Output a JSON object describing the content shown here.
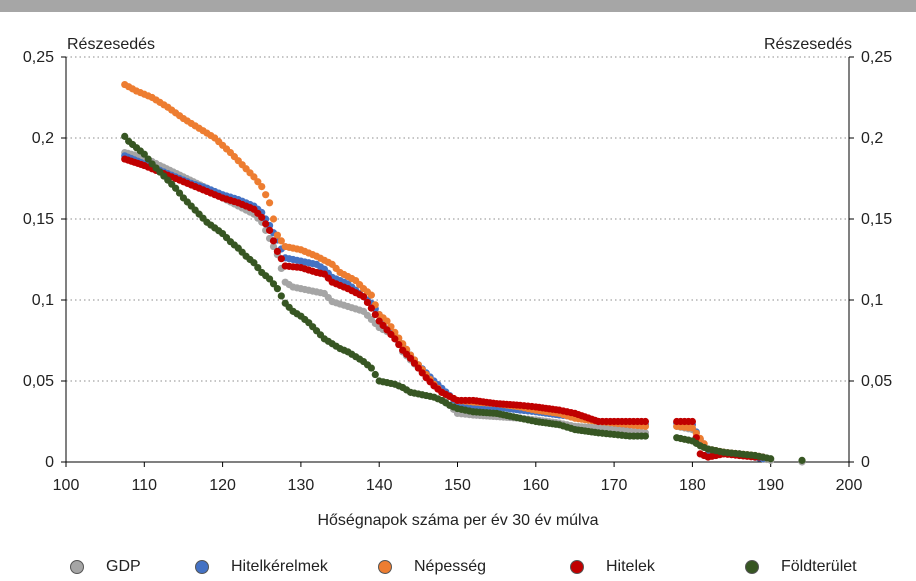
{
  "chart_data": {
    "type": "scatter",
    "title": "",
    "xlabel": "Hőségnapok száma per év 30 év múlva",
    "ylabel_left": "Részesedés",
    "ylabel_right": "Részesedés",
    "xlim": [
      100,
      200
    ],
    "ylim": [
      0,
      0.25
    ],
    "x_ticks": [
      "100",
      "110",
      "120",
      "130",
      "140",
      "150",
      "160",
      "170",
      "180",
      "190",
      "200"
    ],
    "y_ticks": [
      "0",
      "0,05",
      "0,1",
      "0,15",
      "0,2",
      "0,25"
    ],
    "grid": "horizontal-dotted",
    "legend_position": "bottom",
    "series": [
      {
        "name": "GDP",
        "color": "#a5a5a5",
        "points": [
          [
            107.5,
            0.191
          ],
          [
            110,
            0.188
          ],
          [
            112,
            0.183
          ],
          [
            115,
            0.176
          ],
          [
            118,
            0.169
          ],
          [
            120,
            0.163
          ],
          [
            122,
            0.158
          ],
          [
            124,
            0.153
          ],
          [
            125,
            0.148
          ],
          [
            126,
            0.138
          ],
          [
            127,
            0.128
          ],
          [
            128,
            0.111
          ],
          [
            129,
            0.108
          ],
          [
            131,
            0.106
          ],
          [
            133,
            0.104
          ],
          [
            134,
            0.099
          ],
          [
            136,
            0.096
          ],
          [
            138,
            0.093
          ],
          [
            139,
            0.088
          ],
          [
            140,
            0.083
          ],
          [
            142,
            0.078
          ],
          [
            143,
            0.068
          ],
          [
            144,
            0.063
          ],
          [
            146,
            0.053
          ],
          [
            148,
            0.043
          ],
          [
            149,
            0.035
          ],
          [
            150,
            0.03
          ],
          [
            152,
            0.029
          ],
          [
            155,
            0.028
          ],
          [
            158,
            0.027
          ],
          [
            160,
            0.026
          ],
          [
            163,
            0.024
          ],
          [
            165,
            0.022
          ],
          [
            168,
            0.021
          ],
          [
            170,
            0.02
          ],
          [
            172,
            0.019
          ],
          [
            174,
            0.018
          ],
          [
            178,
            0.022
          ],
          [
            180,
            0.02
          ],
          [
            181,
            0.011
          ],
          [
            182,
            0.008
          ],
          [
            184,
            0.006
          ],
          [
            186,
            0.005
          ],
          [
            188,
            0.003
          ],
          [
            189,
            0.002
          ],
          [
            190,
            0.001
          ],
          [
            194,
            0.0
          ]
        ]
      },
      {
        "name": "Hitelkérelmek",
        "color": "#4472c4",
        "points": [
          [
            107.5,
            0.189
          ],
          [
            110,
            0.184
          ],
          [
            112,
            0.18
          ],
          [
            114,
            0.176
          ],
          [
            116,
            0.172
          ],
          [
            118,
            0.169
          ],
          [
            120,
            0.165
          ],
          [
            122,
            0.162
          ],
          [
            124,
            0.158
          ],
          [
            125,
            0.154
          ],
          [
            126,
            0.146
          ],
          [
            127,
            0.137
          ],
          [
            128,
            0.126
          ],
          [
            130,
            0.124
          ],
          [
            132,
            0.122
          ],
          [
            133,
            0.119
          ],
          [
            134,
            0.114
          ],
          [
            136,
            0.11
          ],
          [
            137,
            0.106
          ],
          [
            139,
            0.098
          ],
          [
            140,
            0.091
          ],
          [
            141,
            0.082
          ],
          [
            143,
            0.072
          ],
          [
            145,
            0.06
          ],
          [
            147,
            0.05
          ],
          [
            149,
            0.041
          ],
          [
            150,
            0.036
          ],
          [
            152,
            0.035
          ],
          [
            155,
            0.034
          ],
          [
            158,
            0.032
          ],
          [
            160,
            0.031
          ],
          [
            163,
            0.029
          ],
          [
            165,
            0.028
          ],
          [
            168,
            0.025
          ],
          [
            170,
            0.024
          ],
          [
            172,
            0.023
          ],
          [
            174,
            0.023
          ],
          [
            178,
            0.024
          ],
          [
            180,
            0.023
          ],
          [
            182,
            0.005
          ],
          [
            186,
            0.005
          ],
          [
            188,
            0.003
          ],
          [
            189,
            0.002
          ]
        ]
      },
      {
        "name": "Népesség",
        "color": "#ed7d31",
        "points": [
          [
            107.5,
            0.233
          ],
          [
            109,
            0.229
          ],
          [
            111,
            0.225
          ],
          [
            113,
            0.219
          ],
          [
            115,
            0.212
          ],
          [
            117,
            0.206
          ],
          [
            119,
            0.2
          ],
          [
            121,
            0.191
          ],
          [
            122,
            0.186
          ],
          [
            123,
            0.181
          ],
          [
            124,
            0.176
          ],
          [
            125,
            0.17
          ],
          [
            126,
            0.16
          ],
          [
            127,
            0.14
          ],
          [
            128,
            0.133
          ],
          [
            130,
            0.131
          ],
          [
            132,
            0.127
          ],
          [
            134,
            0.122
          ],
          [
            135,
            0.117
          ],
          [
            137,
            0.112
          ],
          [
            138,
            0.107
          ],
          [
            139,
            0.103
          ],
          [
            140,
            0.091
          ],
          [
            141,
            0.087
          ],
          [
            142,
            0.08
          ],
          [
            143,
            0.073
          ],
          [
            144,
            0.066
          ],
          [
            145,
            0.06
          ],
          [
            146,
            0.054
          ],
          [
            147,
            0.048
          ],
          [
            148,
            0.043
          ],
          [
            150,
            0.038
          ],
          [
            152,
            0.037
          ],
          [
            155,
            0.036
          ],
          [
            158,
            0.034
          ],
          [
            160,
            0.032
          ],
          [
            163,
            0.03
          ],
          [
            165,
            0.027
          ],
          [
            168,
            0.025
          ],
          [
            170,
            0.024
          ],
          [
            172,
            0.023
          ],
          [
            174,
            0.022
          ],
          [
            178,
            0.022
          ],
          [
            180,
            0.021
          ],
          [
            182,
            0.008
          ],
          [
            184,
            0.006
          ],
          [
            186,
            0.005
          ],
          [
            188,
            0.004
          ],
          [
            189,
            0.003
          ]
        ]
      },
      {
        "name": "Hitelek",
        "color": "#c00000",
        "points": [
          [
            107.5,
            0.187
          ],
          [
            110,
            0.183
          ],
          [
            112,
            0.179
          ],
          [
            114,
            0.175
          ],
          [
            116,
            0.171
          ],
          [
            118,
            0.167
          ],
          [
            120,
            0.163
          ],
          [
            122,
            0.16
          ],
          [
            124,
            0.156
          ],
          [
            125,
            0.151
          ],
          [
            126,
            0.143
          ],
          [
            127,
            0.13
          ],
          [
            128,
            0.121
          ],
          [
            130,
            0.12
          ],
          [
            132,
            0.117
          ],
          [
            133,
            0.116
          ],
          [
            134,
            0.111
          ],
          [
            136,
            0.107
          ],
          [
            138,
            0.102
          ],
          [
            139,
            0.095
          ],
          [
            140,
            0.087
          ],
          [
            142,
            0.076
          ],
          [
            143,
            0.069
          ],
          [
            144,
            0.064
          ],
          [
            145,
            0.058
          ],
          [
            146,
            0.052
          ],
          [
            147,
            0.047
          ],
          [
            148,
            0.043
          ],
          [
            150,
            0.038
          ],
          [
            152,
            0.038
          ],
          [
            155,
            0.036
          ],
          [
            158,
            0.035
          ],
          [
            160,
            0.034
          ],
          [
            163,
            0.032
          ],
          [
            165,
            0.03
          ],
          [
            168,
            0.025
          ],
          [
            170,
            0.025
          ],
          [
            172,
            0.025
          ],
          [
            174,
            0.025
          ],
          [
            178,
            0.025
          ],
          [
            180,
            0.025
          ],
          [
            181,
            0.005
          ],
          [
            182,
            0.003
          ],
          [
            184,
            0.005
          ],
          [
            186,
            0.004
          ],
          [
            188,
            0.003
          ],
          [
            189,
            0.003
          ]
        ]
      },
      {
        "name": "Földterület",
        "color": "#375623",
        "points": [
          [
            107.5,
            0.201
          ],
          [
            108,
            0.198
          ],
          [
            109,
            0.194
          ],
          [
            110,
            0.19
          ],
          [
            111,
            0.184
          ],
          [
            112,
            0.179
          ],
          [
            113,
            0.174
          ],
          [
            114,
            0.169
          ],
          [
            115,
            0.163
          ],
          [
            116,
            0.158
          ],
          [
            117,
            0.153
          ],
          [
            118,
            0.148
          ],
          [
            120,
            0.141
          ],
          [
            121,
            0.136
          ],
          [
            122,
            0.132
          ],
          [
            123,
            0.127
          ],
          [
            124,
            0.123
          ],
          [
            125,
            0.117
          ],
          [
            126,
            0.113
          ],
          [
            127,
            0.107
          ],
          [
            128,
            0.098
          ],
          [
            129,
            0.093
          ],
          [
            130,
            0.09
          ],
          [
            131,
            0.086
          ],
          [
            132,
            0.081
          ],
          [
            133,
            0.076
          ],
          [
            134,
            0.073
          ],
          [
            135,
            0.07
          ],
          [
            136,
            0.068
          ],
          [
            137,
            0.065
          ],
          [
            138,
            0.062
          ],
          [
            139,
            0.058
          ],
          [
            140,
            0.05
          ],
          [
            141,
            0.049
          ],
          [
            142,
            0.048
          ],
          [
            143,
            0.046
          ],
          [
            144,
            0.043
          ],
          [
            145,
            0.042
          ],
          [
            146,
            0.041
          ],
          [
            147,
            0.04
          ],
          [
            148,
            0.038
          ],
          [
            149,
            0.035
          ],
          [
            150,
            0.033
          ],
          [
            152,
            0.031
          ],
          [
            155,
            0.03
          ],
          [
            158,
            0.027
          ],
          [
            160,
            0.025
          ],
          [
            163,
            0.023
          ],
          [
            165,
            0.02
          ],
          [
            168,
            0.018
          ],
          [
            170,
            0.017
          ],
          [
            172,
            0.016
          ],
          [
            174,
            0.016
          ],
          [
            178,
            0.015
          ],
          [
            180,
            0.013
          ],
          [
            181,
            0.01
          ],
          [
            182,
            0.008
          ],
          [
            184,
            0.006
          ],
          [
            186,
            0.005
          ],
          [
            188,
            0.004
          ],
          [
            189,
            0.003
          ],
          [
            190,
            0.002
          ],
          [
            194,
            0.001
          ]
        ]
      }
    ]
  }
}
